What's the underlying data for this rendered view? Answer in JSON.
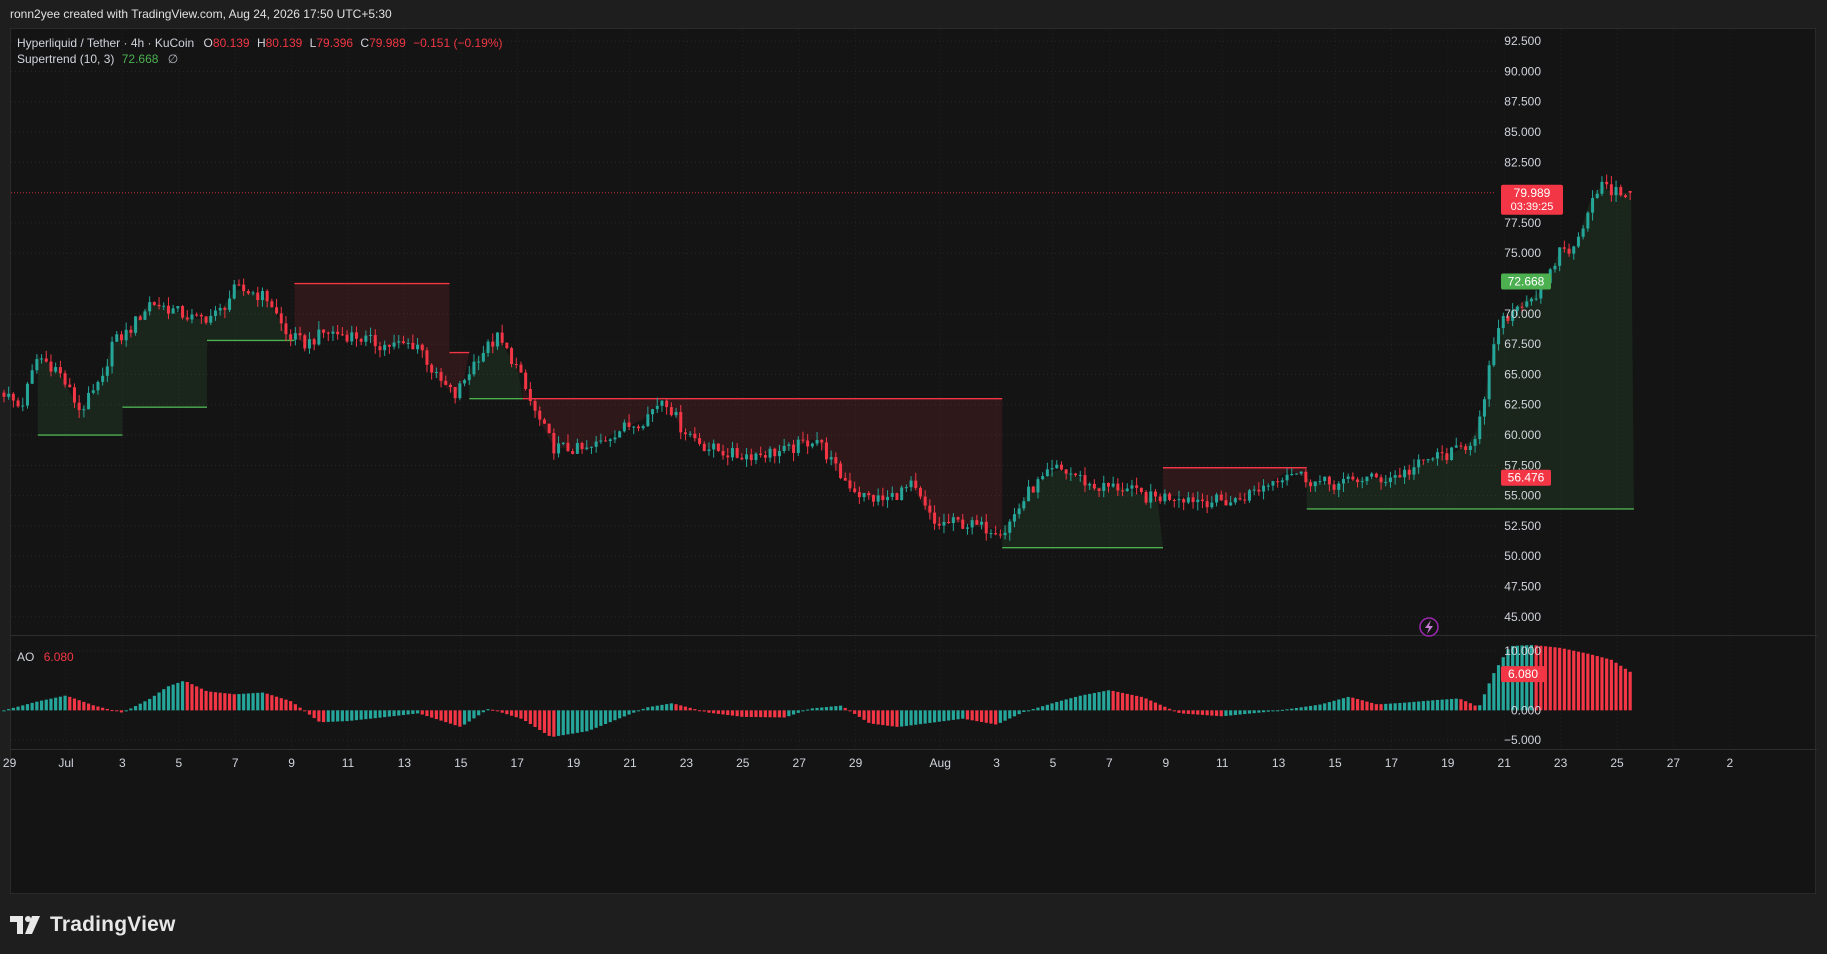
{
  "header": {
    "credit": "ronn2yee created with TradingView.com, Aug 24, 2026 17:50 UTC+5:30"
  },
  "legend": {
    "symbol": "Hyperliquid / Tether · 4h · KuCoin",
    "open_label": "O",
    "open": "80.139",
    "high_label": "H",
    "high": "80.139",
    "low_label": "L",
    "low": "79.396",
    "close_label": "C",
    "close": "79.989",
    "change": "−0.151 (−0.19%)",
    "supertrend_label": "Supertrend (10, 3)",
    "supertrend_value": "72.668",
    "supertrend_icon": "∅"
  },
  "oscillator_legend": {
    "label": "AO",
    "value": "6.080"
  },
  "colors": {
    "up": "#26a69a",
    "down": "#f23645",
    "supertrend_up": "#4caf50",
    "supertrend_down": "#f23645",
    "background": "#141414"
  },
  "chart_data": [
    {
      "type": "candlestick",
      "title": "",
      "price_axis": {
        "ylim": [
          43.5,
          93.5
        ],
        "ticks": [
          "92.500",
          "90.000",
          "87.500",
          "85.000",
          "82.500",
          "77.500",
          "75.000",
          "70.000",
          "67.500",
          "65.000",
          "62.500",
          "60.000",
          "57.500",
          "55.000",
          "52.500",
          "50.000",
          "47.500",
          "45.000"
        ],
        "tick_values": [
          92.5,
          90,
          87.5,
          85,
          82.5,
          77.5,
          75,
          70,
          67.5,
          65,
          62.5,
          60,
          57.5,
          55,
          52.5,
          50,
          47.5,
          45
        ]
      },
      "price_labels": {
        "last_price": "79.989",
        "countdown": "03:39:25",
        "supertrend": "72.668",
        "supertrend_down_level": "56.476"
      },
      "x_axis": {
        "ticks": [
          "29",
          "Jul",
          "3",
          "5",
          "7",
          "9",
          "11",
          "13",
          "15",
          "17",
          "19",
          "21",
          "23",
          "25",
          "27",
          "29",
          "Aug",
          "3",
          "5",
          "7",
          "9",
          "11",
          "13",
          "15",
          "17",
          "19",
          "21",
          "23",
          "25",
          "27",
          "2"
        ],
        "tick_days": [
          -2,
          0,
          2,
          4,
          6,
          8,
          10,
          12,
          14,
          16,
          18,
          20,
          22,
          24,
          26,
          28,
          31,
          33,
          35,
          37,
          39,
          41,
          43,
          45,
          47,
          49,
          51,
          53,
          55,
          57,
          59
        ]
      },
      "price_path": {
        "description_days": "close price keypoints; x in days since Jul 1, y in USDT",
        "days": [
          -2.2,
          -1.6,
          -1.0,
          -0.3,
          0.5,
          1.3,
          1.6,
          2.2,
          3.0,
          3.8,
          4.6,
          5.4,
          6.0,
          6.6,
          7.2,
          7.8,
          8.5,
          9.2,
          10.2,
          11.2,
          12.5,
          13.1,
          13.8,
          14.6,
          15.3,
          15.9,
          16.6,
          17.3,
          18.5,
          19.5,
          20.5,
          21.2,
          21.8,
          22.7,
          23.8,
          24.7,
          25.6,
          26.6,
          27.4,
          28.2,
          29.0,
          30.0,
          30.8,
          31.6,
          32.4,
          33.3,
          34.2,
          35.1,
          35.8,
          36.4,
          37.4,
          38.4,
          39.4,
          40.4,
          41.4,
          42.4,
          43.4,
          44.3,
          45.1,
          45.9,
          46.8,
          47.6,
          48.4,
          49.2,
          49.9,
          50.3,
          50.6,
          51.0,
          51.6,
          52.1,
          52.5,
          53.0,
          53.5,
          54.0,
          54.4,
          54.8,
          55.6
        ],
        "close": [
          63.5,
          62.2,
          66.5,
          65.4,
          62.0,
          64.5,
          67.5,
          68.5,
          71.0,
          70.3,
          69.5,
          70.0,
          72.0,
          71.8,
          71.2,
          68.3,
          67.5,
          68.5,
          68.2,
          67.4,
          67.5,
          64.8,
          63.2,
          66.5,
          68.0,
          66.0,
          62.0,
          59.0,
          58.7,
          60.3,
          61.3,
          63.2,
          60.7,
          59.0,
          58.3,
          58.5,
          58.7,
          59.8,
          56.8,
          55.0,
          54.6,
          55.8,
          52.6,
          52.8,
          52.4,
          52.2,
          55.5,
          57.2,
          56.7,
          55.7,
          55.7,
          54.8,
          55.0,
          54.6,
          54.5,
          55.7,
          57.1,
          56.1,
          55.9,
          56.4,
          56.4,
          57.0,
          58.1,
          58.5,
          59.6,
          62.5,
          67.5,
          69.5,
          71.0,
          71.5,
          72.3,
          75.5,
          75.2,
          79.0,
          80.8,
          80.0,
          80.0
        ]
      },
      "supertrend_segments": [
        {
          "trend": "up",
          "days": [
            -1.0,
            2.0
          ],
          "level": 60.0
        },
        {
          "trend": "up",
          "days": [
            2.0,
            5.0
          ],
          "level": 62.3
        },
        {
          "trend": "up",
          "days": [
            5.0,
            8.1
          ],
          "level": 67.8
        },
        {
          "trend": "down",
          "days": [
            8.1,
            13.6
          ],
          "level": 72.5
        },
        {
          "trend": "down",
          "days": [
            13.6,
            14.3
          ],
          "level": 66.8
        },
        {
          "trend": "up",
          "days": [
            14.3,
            16.2
          ],
          "level": 63.0
        },
        {
          "trend": "down",
          "days": [
            16.2,
            33.2
          ],
          "level": 63.0
        },
        {
          "trend": "up",
          "days": [
            33.2,
            38.9
          ],
          "level": 50.7
        },
        {
          "trend": "down",
          "days": [
            38.9,
            44.0
          ],
          "level": 57.3
        },
        {
          "trend": "up",
          "days": [
            44.0,
            55.6
          ],
          "level": 53.9
        }
      ],
      "last_candle": {
        "open": 80.139,
        "high": 80.139,
        "low": 79.396,
        "close": 79.989
      }
    },
    {
      "type": "histogram",
      "title": "",
      "series_name": "AO",
      "y_axis": {
        "ylim": [
          -6.5,
          12.5
        ],
        "ticks": [
          "10.000",
          "0.000",
          "−5.000"
        ],
        "tick_values": [
          10,
          0,
          -5
        ]
      },
      "value_label": "6.080",
      "ao_path": {
        "days": [
          -2.2,
          -1.0,
          0.0,
          1.0,
          2.0,
          3.0,
          3.6,
          4.2,
          5.0,
          6.0,
          7.0,
          8.0,
          9.0,
          10.0,
          11.0,
          12.5,
          14.0,
          15.0,
          16.2,
          17.2,
          18.5,
          19.5,
          20.6,
          21.5,
          22.8,
          24.0,
          25.5,
          26.4,
          27.5,
          28.5,
          29.5,
          30.5,
          31.8,
          33.0,
          34.0,
          35.2,
          36.0,
          37.0,
          38.2,
          39.5,
          41.0,
          42.5,
          43.5,
          44.5,
          45.5,
          46.5,
          47.5,
          48.5,
          49.4,
          49.8,
          50.1,
          50.6,
          51.2,
          52.0,
          53.0,
          54.0,
          54.8,
          55.6
        ],
        "values": [
          0.0,
          1.5,
          2.5,
          0.8,
          -0.4,
          2.0,
          4.0,
          5.0,
          3.2,
          2.7,
          3.0,
          1.5,
          -2.0,
          -1.8,
          -1.3,
          -0.5,
          -2.8,
          0.3,
          -1.5,
          -4.5,
          -3.5,
          -1.6,
          0.5,
          1.2,
          -0.4,
          -1.1,
          -1.2,
          0.3,
          0.8,
          -2.2,
          -2.8,
          -2.2,
          -1.4,
          -2.4,
          -0.2,
          1.5,
          2.5,
          3.4,
          2.2,
          -0.5,
          -1.0,
          -0.3,
          0.3,
          1.0,
          2.3,
          1.0,
          1.3,
          1.7,
          2.0,
          1.2,
          0.5,
          6.0,
          10.8,
          11.0,
          10.5,
          9.5,
          8.5,
          6.08
        ]
      }
    }
  ]
}
